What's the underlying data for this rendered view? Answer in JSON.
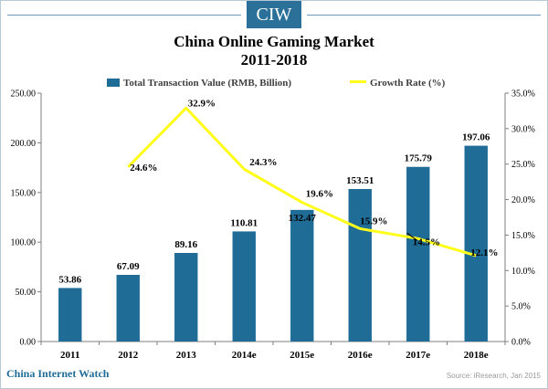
{
  "brand": {
    "logo_text": "CIW",
    "footer_name": "China Internet Watch",
    "source_note": "Source: iResearch, Jan 2015"
  },
  "title_line1": "China Online Gaming Market",
  "title_line2": "2011-2018",
  "colors": {
    "bar": "#1f6c97",
    "line": "#ffff1a",
    "axis": "#7f7f7f",
    "brand": "#1f6c97"
  },
  "legend": {
    "bar_label": "Total Transaction Value (RMB, Billion)",
    "line_label": "Growth Rate (%)"
  },
  "chart_data": {
    "type": "bar+line",
    "title": "China Online Gaming Market 2011-2018",
    "categories": [
      "2011",
      "2012",
      "2013",
      "2014e",
      "2015e",
      "2016e",
      "2017e",
      "2018e"
    ],
    "series": [
      {
        "name": "Total Transaction Value (RMB, Billion)",
        "type": "bar",
        "axis": "left",
        "values": [
          53.86,
          67.09,
          89.16,
          110.81,
          132.47,
          153.51,
          175.79,
          197.06
        ],
        "labels": [
          "53.86",
          "67.09",
          "89.16",
          "110.81",
          "132.47",
          "153.51",
          "175.79",
          "197.06"
        ]
      },
      {
        "name": "Growth Rate (%)",
        "type": "line",
        "axis": "right",
        "values": [
          null,
          24.6,
          32.9,
          24.3,
          19.6,
          15.9,
          14.5,
          12.1
        ],
        "labels": [
          "",
          "24.6%",
          "32.9%",
          "24.3%",
          "19.6%",
          "15.9%",
          "14.5%",
          "12.1%"
        ]
      }
    ],
    "y_left": {
      "min": 0,
      "max": 250,
      "ticks": [
        "0.00",
        "50.00",
        "100.00",
        "150.00",
        "200.00",
        "250.00"
      ]
    },
    "y_right": {
      "min": 0,
      "max": 35,
      "ticks": [
        "0.0%",
        "5.0%",
        "10.0%",
        "15.0%",
        "20.0%",
        "25.0%",
        "30.0%",
        "35.0%"
      ]
    },
    "grid": false,
    "legend_position": "top"
  }
}
